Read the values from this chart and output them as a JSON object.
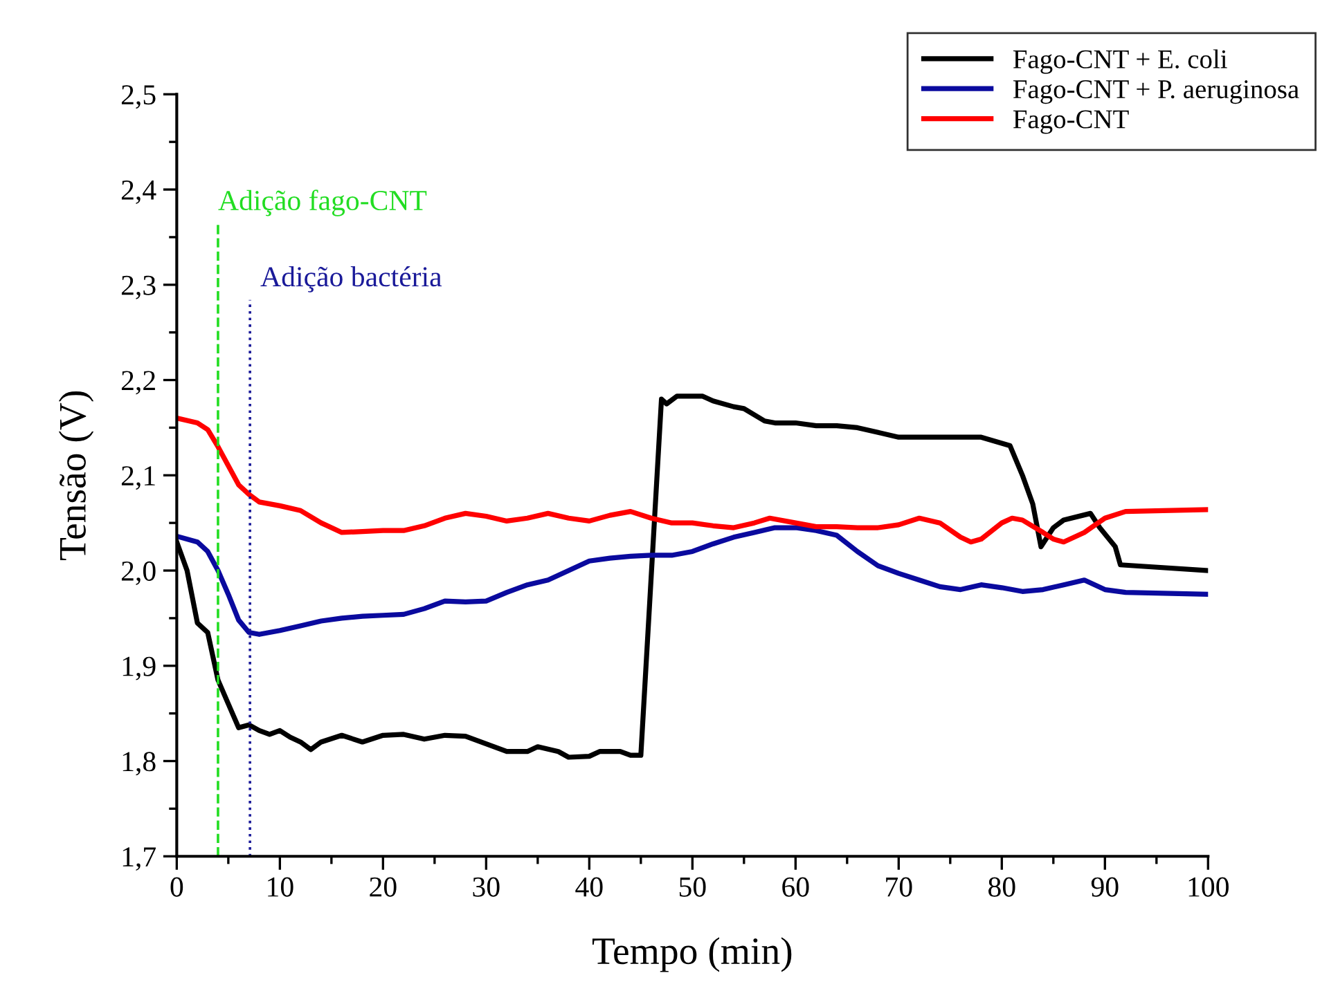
{
  "chart_data": {
    "type": "line",
    "xlabel": "Tempo (min)",
    "ylabel": "Tensão (V)",
    "xlim": [
      0,
      100
    ],
    "xticks": [
      0,
      10,
      20,
      30,
      40,
      50,
      60,
      70,
      80,
      90,
      100
    ],
    "ylim": [
      1.7,
      2.5
    ],
    "yticks": [
      {
        "value": 1.7,
        "label": "1,7"
      },
      {
        "value": 1.8,
        "label": "1,8"
      },
      {
        "value": 1.9,
        "label": "1,9"
      },
      {
        "value": 2.0,
        "label": "2,0"
      },
      {
        "value": 2.1,
        "label": "2,1"
      },
      {
        "value": 2.2,
        "label": "2,2"
      },
      {
        "value": 2.3,
        "label": "2,3"
      },
      {
        "value": 2.4,
        "label": "2,4"
      },
      {
        "value": 2.5,
        "label": "2,5"
      }
    ],
    "grid": false,
    "legend": "top right",
    "marker": "none",
    "line_style": "solid",
    "ref_lines": [
      {
        "axis": "x",
        "value": 4,
        "label": "Adição fago-CNT",
        "color": "#22dd22",
        "line_style": "dashed"
      },
      {
        "axis": "x",
        "value": 7.1,
        "label": "Adição bactéria",
        "color": "#1a1a99",
        "line_style": "dotted"
      }
    ],
    "series": [
      {
        "name": "Fago-CNT + E. coli",
        "color": "#000000",
        "x": [
          0,
          1,
          2,
          3,
          4,
          5,
          6,
          7,
          8,
          9,
          10,
          11,
          12,
          13,
          14,
          16,
          18,
          20,
          22,
          24,
          26,
          28,
          30,
          32,
          34,
          35,
          37,
          38,
          40,
          41,
          43,
          44,
          45,
          47,
          47.5,
          48.5,
          51,
          52,
          54,
          55,
          57,
          58,
          60,
          62,
          64,
          66,
          68,
          70,
          72,
          78,
          80.8,
          82,
          83,
          83.8,
          85,
          86,
          88.6,
          89.5,
          91,
          91.5,
          100
        ],
        "values": [
          2.03,
          2.0,
          1.945,
          1.935,
          1.885,
          1.86,
          1.835,
          1.838,
          1.832,
          1.828,
          1.832,
          1.825,
          1.82,
          1.812,
          1.82,
          1.827,
          1.82,
          1.827,
          1.828,
          1.823,
          1.827,
          1.826,
          1.818,
          1.81,
          1.81,
          1.815,
          1.81,
          1.804,
          1.805,
          1.81,
          1.81,
          1.806,
          1.806,
          2.18,
          2.175,
          2.183,
          2.183,
          2.178,
          2.172,
          2.17,
          2.157,
          2.155,
          2.155,
          2.152,
          2.152,
          2.15,
          2.145,
          2.14,
          2.14,
          2.14,
          2.131,
          2.1,
          2.07,
          2.025,
          2.045,
          2.053,
          2.06,
          2.045,
          2.025,
          2.006,
          2.0
        ]
      },
      {
        "name": "Fago-CNT + P. aeruginosa",
        "color": "#0a0a9e",
        "x": [
          0,
          2,
          3,
          4,
          5,
          6,
          7,
          8,
          10,
          12,
          14,
          16,
          18,
          20,
          22,
          24,
          26,
          28,
          30,
          32,
          34,
          36,
          38,
          40,
          42,
          44,
          46,
          48,
          50,
          52,
          54,
          56,
          58,
          60,
          62,
          64,
          66,
          68,
          70,
          72,
          74,
          76,
          78,
          80,
          82,
          84,
          86,
          88,
          90,
          92,
          100
        ],
        "values": [
          2.036,
          2.03,
          2.02,
          2.0,
          1.975,
          1.948,
          1.935,
          1.933,
          1.937,
          1.942,
          1.947,
          1.95,
          1.952,
          1.953,
          1.954,
          1.96,
          1.968,
          1.967,
          1.968,
          1.977,
          1.985,
          1.99,
          2.0,
          2.01,
          2.013,
          2.015,
          2.016,
          2.016,
          2.02,
          2.028,
          2.035,
          2.04,
          2.045,
          2.045,
          2.042,
          2.037,
          2.02,
          2.005,
          1.997,
          1.99,
          1.983,
          1.98,
          1.985,
          1.982,
          1.978,
          1.98,
          1.985,
          1.99,
          1.98,
          1.977,
          1.975
        ]
      },
      {
        "name": "Fago-CNT",
        "color": "#ff0000",
        "x": [
          0,
          2,
          3,
          4,
          5,
          6,
          7,
          8,
          10,
          12,
          14,
          16,
          18,
          20,
          22,
          24,
          26,
          28,
          30,
          32,
          34,
          36,
          38,
          40,
          42,
          44,
          46,
          48,
          50,
          52,
          54,
          56,
          57.5,
          60,
          62,
          64,
          66,
          68,
          70,
          72,
          74,
          76,
          77,
          78,
          80,
          81,
          82,
          84,
          85,
          86,
          88,
          90,
          92,
          100
        ],
        "values": [
          2.16,
          2.155,
          2.148,
          2.13,
          2.11,
          2.09,
          2.08,
          2.072,
          2.068,
          2.063,
          2.05,
          2.04,
          2.041,
          2.042,
          2.042,
          2.047,
          2.055,
          2.06,
          2.057,
          2.052,
          2.055,
          2.06,
          2.055,
          2.052,
          2.058,
          2.062,
          2.055,
          2.05,
          2.05,
          2.047,
          2.045,
          2.05,
          2.055,
          2.05,
          2.046,
          2.046,
          2.045,
          2.045,
          2.048,
          2.055,
          2.05,
          2.035,
          2.03,
          2.033,
          2.05,
          2.055,
          2.053,
          2.04,
          2.033,
          2.03,
          2.04,
          2.055,
          2.062,
          2.064
        ]
      }
    ]
  }
}
